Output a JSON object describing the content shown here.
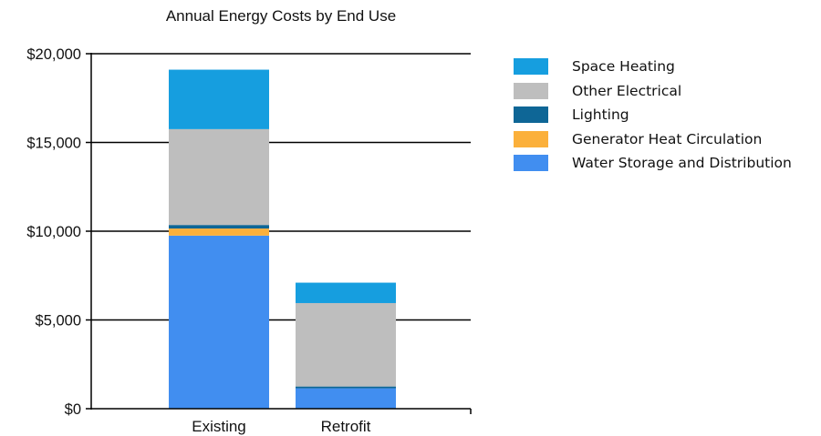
{
  "chart_data": {
    "type": "bar",
    "stacked": true,
    "title": "Annual Energy Costs by End Use",
    "xlabel": "",
    "ylabel": "",
    "categories": [
      "Existing",
      "Retrofit"
    ],
    "ylim": [
      0,
      20000
    ],
    "yticks": [
      0,
      5000,
      10000,
      15000,
      20000
    ],
    "ytick_labels": [
      "$0",
      "$5,000",
      "$10,000",
      "$15,000",
      "$20,000"
    ],
    "grid": true,
    "legend_position": "right",
    "series": [
      {
        "name": "Water Storage and Distribution",
        "color": "#418ef0",
        "values": [
          9750,
          1150
        ]
      },
      {
        "name": "Generator Heat Circulation",
        "color": "#fbb03b",
        "values": [
          400,
          0
        ]
      },
      {
        "name": "Lighting",
        "color": "#0e6696",
        "values": [
          200,
          100
        ]
      },
      {
        "name": "Other Electrical",
        "color": "#bebebe",
        "values": [
          5400,
          4700
        ]
      },
      {
        "name": "Space Heating",
        "color": "#169edf",
        "values": [
          3350,
          1150
        ]
      }
    ],
    "legend_order": [
      "Space Heating",
      "Other Electrical",
      "Lighting",
      "Generator Heat Circulation",
      "Water Storage and Distribution"
    ]
  }
}
